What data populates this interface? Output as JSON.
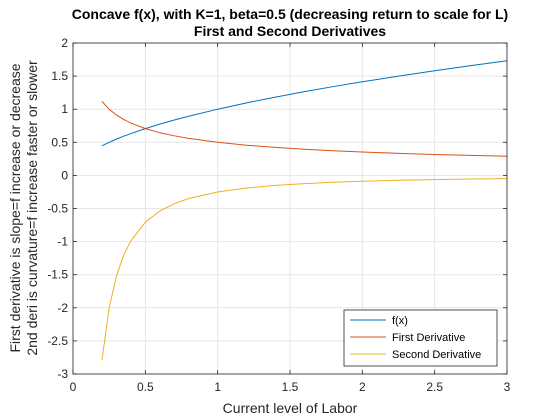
{
  "chart_data": {
    "type": "line",
    "title": "Concave f(x), with K=1, beta=0.5 (decreasing return to scale for L)",
    "subtitle": "First and Second Derivatives",
    "xlabel": "Current level of Labor",
    "ylabel_line1": "First derivative is slope=f increase or decrease",
    "ylabel_line2": "2nd deri is curvature=f increase faster or slower",
    "xlim": [
      0,
      3
    ],
    "ylim": [
      -3,
      2
    ],
    "xticks": [
      0,
      0.5,
      1,
      1.5,
      2,
      2.5,
      3
    ],
    "xtick_labels": [
      "0",
      "0.5",
      "1",
      "1.5",
      "2",
      "2.5",
      "3"
    ],
    "yticks": [
      -3,
      -2.5,
      -2,
      -1.5,
      -1,
      -0.5,
      0,
      0.5,
      1,
      1.5,
      2
    ],
    "ytick_labels": [
      "-3",
      "-2.5",
      "-2",
      "-1.5",
      "-1",
      "-0.5",
      "0",
      "0.5",
      "1",
      "1.5",
      "2"
    ],
    "grid": true,
    "legend_position": "bottom-right",
    "x": [
      0.2,
      0.25,
      0.3,
      0.35,
      0.4,
      0.5,
      0.6,
      0.7,
      0.8,
      1.0,
      1.2,
      1.4,
      1.6,
      1.8,
      2.0,
      2.25,
      2.5,
      2.75,
      3.0
    ],
    "series": [
      {
        "name": "f(x)",
        "color": "#0072BD",
        "values": [
          0.447,
          0.5,
          0.548,
          0.592,
          0.632,
          0.707,
          0.775,
          0.837,
          0.894,
          1.0,
          1.095,
          1.183,
          1.265,
          1.342,
          1.414,
          1.5,
          1.581,
          1.658,
          1.732
        ]
      },
      {
        "name": "First Derivative",
        "color": "#D95319",
        "values": [
          1.118,
          1.0,
          0.913,
          0.845,
          0.791,
          0.707,
          0.645,
          0.598,
          0.559,
          0.5,
          0.456,
          0.423,
          0.395,
          0.373,
          0.354,
          0.333,
          0.316,
          0.302,
          0.289
        ]
      },
      {
        "name": "Second Derivative",
        "color": "#EDB120",
        "values": [
          -2.795,
          -2.0,
          -1.521,
          -1.207,
          -0.988,
          -0.707,
          -0.538,
          -0.427,
          -0.349,
          -0.25,
          -0.19,
          -0.151,
          -0.124,
          -0.104,
          -0.088,
          -0.074,
          -0.063,
          -0.055,
          -0.048
        ]
      }
    ]
  }
}
